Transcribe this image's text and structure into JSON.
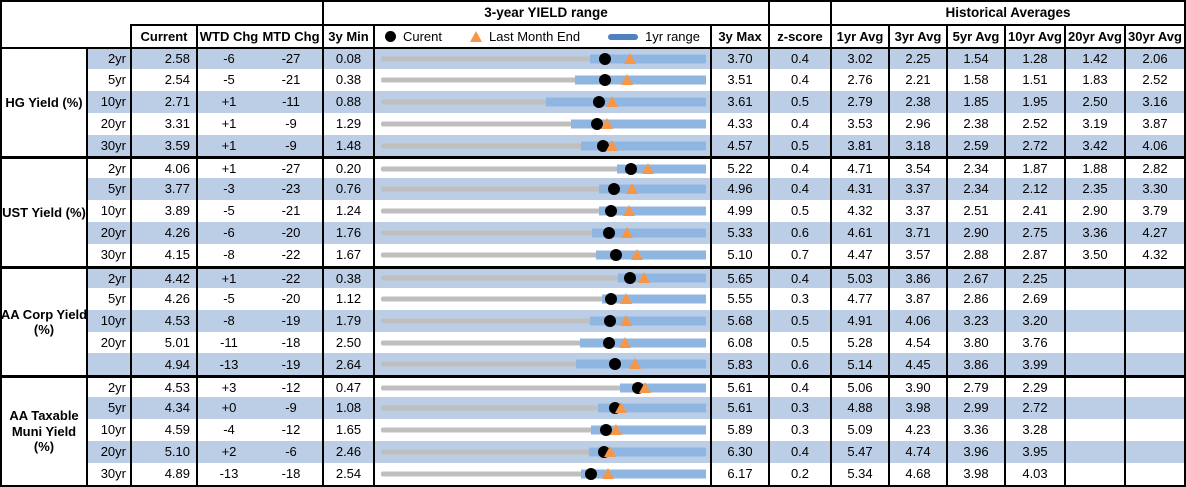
{
  "header": {
    "chart_title": "3-year YIELD range",
    "historical_title": "Historical Averages",
    "col_current": "Current",
    "col_wtd": "WTD Chg",
    "col_mtd": "MTD Chg",
    "col_3ymin": "3y Min",
    "col_3ymax": "3y Max",
    "col_zscore": "z-score",
    "avg_cols": [
      "1yr Avg",
      "3yr Avg",
      "5yr Avg",
      "10yr Avg",
      "20yr Avg",
      "30yr Avg"
    ],
    "legend": {
      "current": "Curent",
      "last_month": "Last Month End",
      "range": "1yr range"
    }
  },
  "colors": {
    "stripe": "#BCCEE6",
    "bar": "#8FB5E1",
    "track": "#BFBFBF",
    "orange": "#F79646",
    "legendblue": "#4F81BD",
    "border": "#000000"
  },
  "chart_data": {
    "type": "table",
    "note": "Each row embeds a bullet-range chart spanning [3y Min, 3y Max]: gray full 3y range, blue 1yr range bar, black dot = current, orange triangle = last month end (current minus MTD change in bp). All 1yr ranges end at the 3y Max.",
    "title": "3-year YIELD range",
    "legend_entries": [
      "Curent",
      "Last Month End",
      "1yr range"
    ],
    "groups": [
      {
        "label_lines": [
          "HG Yield (%)"
        ],
        "rows": [
          {
            "tenor": "2yr",
            "current": "2.58",
            "wtd": "-6",
            "mtd": "-27",
            "min3y": "0.08",
            "max3y": "3.70",
            "last_month_end": 2.85,
            "range1yr": [
              2.41,
              3.7
            ],
            "zscore": "0.4",
            "avgs": [
              "3.02",
              "2.25",
              "1.54",
              "1.28",
              "1.42",
              "2.06"
            ]
          },
          {
            "tenor": "5yr",
            "current": "2.54",
            "wtd": "-5",
            "mtd": "-21",
            "min3y": "0.38",
            "max3y": "3.51",
            "last_month_end": 2.75,
            "range1yr": [
              2.25,
              3.51
            ],
            "zscore": "0.4",
            "avgs": [
              "2.76",
              "2.21",
              "1.58",
              "1.51",
              "1.83",
              "2.52"
            ]
          },
          {
            "tenor": "10yr",
            "current": "2.71",
            "wtd": "+1",
            "mtd": "-11",
            "min3y": "0.88",
            "max3y": "3.61",
            "last_month_end": 2.82,
            "range1yr": [
              2.27,
              3.61
            ],
            "zscore": "0.5",
            "avgs": [
              "2.79",
              "2.38",
              "1.85",
              "1.95",
              "2.50",
              "3.16"
            ]
          },
          {
            "tenor": "20yr",
            "current": "3.31",
            "wtd": "+1",
            "mtd": "-9",
            "min3y": "1.29",
            "max3y": "4.33",
            "last_month_end": 3.4,
            "range1yr": [
              3.07,
              4.33
            ],
            "zscore": "0.4",
            "avgs": [
              "3.53",
              "2.96",
              "2.38",
              "2.52",
              "3.19",
              "3.87"
            ]
          },
          {
            "tenor": "30yr",
            "current": "3.59",
            "wtd": "+1",
            "mtd": "-9",
            "min3y": "1.48",
            "max3y": "4.57",
            "last_month_end": 3.68,
            "range1yr": [
              3.38,
              4.57
            ],
            "zscore": "0.5",
            "avgs": [
              "3.81",
              "3.18",
              "2.59",
              "2.72",
              "3.42",
              "4.06"
            ]
          }
        ]
      },
      {
        "label_lines": [
          "UST Yield (%)"
        ],
        "rows": [
          {
            "tenor": "2yr",
            "current": "4.06",
            "wtd": "+1",
            "mtd": "-27",
            "min3y": "0.20",
            "max3y": "5.22",
            "last_month_end": 4.33,
            "range1yr": [
              3.84,
              5.22
            ],
            "zscore": "0.4",
            "avgs": [
              "4.71",
              "3.54",
              "2.34",
              "1.87",
              "1.88",
              "2.82"
            ]
          },
          {
            "tenor": "5yr",
            "current": "3.77",
            "wtd": "-3",
            "mtd": "-23",
            "min3y": "0.76",
            "max3y": "4.96",
            "last_month_end": 4.0,
            "range1yr": [
              3.58,
              4.96
            ],
            "zscore": "0.4",
            "avgs": [
              "4.31",
              "3.37",
              "2.34",
              "2.12",
              "2.35",
              "3.30"
            ]
          },
          {
            "tenor": "10yr",
            "current": "3.89",
            "wtd": "-5",
            "mtd": "-21",
            "min3y": "1.24",
            "max3y": "4.99",
            "last_month_end": 4.1,
            "range1yr": [
              3.76,
              4.99
            ],
            "zscore": "0.5",
            "avgs": [
              "4.32",
              "3.37",
              "2.51",
              "2.41",
              "2.90",
              "3.79"
            ]
          },
          {
            "tenor": "20yr",
            "current": "4.26",
            "wtd": "-6",
            "mtd": "-20",
            "min3y": "1.76",
            "max3y": "5.33",
            "last_month_end": 4.46,
            "range1yr": [
              4.08,
              5.33
            ],
            "zscore": "0.6",
            "avgs": [
              "4.61",
              "3.71",
              "2.90",
              "2.75",
              "3.36",
              "4.27"
            ]
          },
          {
            "tenor": "30yr",
            "current": "4.15",
            "wtd": "-8",
            "mtd": "-22",
            "min3y": "1.67",
            "max3y": "5.10",
            "last_month_end": 4.37,
            "range1yr": [
              3.94,
              5.1
            ],
            "zscore": "0.7",
            "avgs": [
              "4.47",
              "3.57",
              "2.88",
              "2.87",
              "3.50",
              "4.32"
            ]
          }
        ]
      },
      {
        "label_lines": [
          "AA Corp Yield",
          "(%)"
        ],
        "rows": [
          {
            "tenor": "2yr",
            "current": "4.42",
            "wtd": "+1",
            "mtd": "-22",
            "min3y": "0.38",
            "max3y": "5.65",
            "last_month_end": 4.64,
            "range1yr": [
              4.23,
              5.65
            ],
            "zscore": "0.4",
            "avgs": [
              "5.03",
              "3.86",
              "2.67",
              "2.25",
              "",
              ""
            ]
          },
          {
            "tenor": "5yr",
            "current": "4.26",
            "wtd": "-5",
            "mtd": "-20",
            "min3y": "1.12",
            "max3y": "5.55",
            "last_month_end": 4.46,
            "range1yr": [
              4.13,
              5.55
            ],
            "zscore": "0.3",
            "avgs": [
              "4.77",
              "3.87",
              "2.86",
              "2.69",
              "",
              ""
            ]
          },
          {
            "tenor": "10yr",
            "current": "4.53",
            "wtd": "-8",
            "mtd": "-19",
            "min3y": "1.79",
            "max3y": "5.68",
            "last_month_end": 4.72,
            "range1yr": [
              4.29,
              5.68
            ],
            "zscore": "0.5",
            "avgs": [
              "4.91",
              "4.06",
              "3.23",
              "3.20",
              "",
              ""
            ]
          },
          {
            "tenor": "20yr",
            "current": "5.01",
            "wtd": "-11",
            "mtd": "-18",
            "min3y": "2.50",
            "max3y": "6.08",
            "last_month_end": 5.19,
            "range1yr": [
              4.69,
              6.08
            ],
            "zscore": "0.5",
            "avgs": [
              "5.28",
              "4.54",
              "3.80",
              "3.76",
              "",
              ""
            ]
          },
          {
            "tenor": "",
            "current": "4.94",
            "wtd": "-13",
            "mtd": "-19",
            "min3y": "2.64",
            "max3y": "5.83",
            "last_month_end": 5.13,
            "range1yr": [
              4.55,
              5.83
            ],
            "zscore": "0.6",
            "avgs": [
              "5.14",
              "4.45",
              "3.86",
              "3.99",
              "",
              ""
            ]
          }
        ]
      },
      {
        "label_lines": [
          "AA Taxable",
          "Muni Yield",
          "(%)"
        ],
        "rows": [
          {
            "tenor": "2yr",
            "current": "4.53",
            "wtd": "+3",
            "mtd": "-12",
            "min3y": "0.47",
            "max3y": "5.61",
            "last_month_end": 4.65,
            "range1yr": [
              4.25,
              5.61
            ],
            "zscore": "0.4",
            "avgs": [
              "5.06",
              "3.90",
              "2.79",
              "2.29",
              "",
              ""
            ]
          },
          {
            "tenor": "5yr",
            "current": "4.34",
            "wtd": "+0",
            "mtd": "-9",
            "min3y": "1.08",
            "max3y": "5.61",
            "last_month_end": 4.43,
            "range1yr": [
              4.1,
              5.61
            ],
            "zscore": "0.3",
            "avgs": [
              "4.88",
              "3.98",
              "2.99",
              "2.72",
              "",
              ""
            ]
          },
          {
            "tenor": "10yr",
            "current": "4.59",
            "wtd": "-4",
            "mtd": "-12",
            "min3y": "1.65",
            "max3y": "5.89",
            "last_month_end": 4.71,
            "range1yr": [
              4.39,
              5.89
            ],
            "zscore": "0.3",
            "avgs": [
              "5.09",
              "4.23",
              "3.36",
              "3.28",
              "",
              ""
            ]
          },
          {
            "tenor": "20yr",
            "current": "5.10",
            "wtd": "+2",
            "mtd": "-6",
            "min3y": "2.46",
            "max3y": "6.30",
            "last_month_end": 5.16,
            "range1yr": [
              4.92,
              6.3
            ],
            "zscore": "0.4",
            "avgs": [
              "5.47",
              "4.74",
              "3.96",
              "3.95",
              "",
              ""
            ]
          },
          {
            "tenor": "30yr",
            "current": "4.89",
            "wtd": "-13",
            "mtd": "-18",
            "min3y": "2.54",
            "max3y": "6.17",
            "last_month_end": 5.07,
            "range1yr": [
              4.77,
              6.17
            ],
            "zscore": "0.2",
            "avgs": [
              "5.34",
              "4.68",
              "3.98",
              "4.03",
              "",
              ""
            ]
          }
        ]
      }
    ]
  }
}
